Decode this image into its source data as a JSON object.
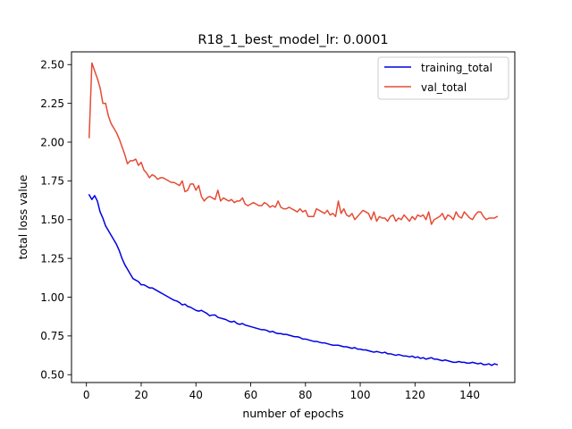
{
  "chart_data": {
    "type": "line",
    "title": "R18_1_best_model_lr: 0.0001",
    "xlabel": "number of epochs",
    "ylabel": "total loss value",
    "xlim": [
      -5.45,
      156.45
    ],
    "ylim": [
      0.4495,
      2.5822
    ],
    "xticks": [
      0,
      20,
      40,
      60,
      80,
      100,
      120,
      140
    ],
    "yticks": [
      0.5,
      0.75,
      1.0,
      1.25,
      1.5,
      1.75,
      2.0,
      2.25,
      2.5
    ],
    "xtick_labels": [
      "0",
      "20",
      "40",
      "60",
      "80",
      "100",
      "120",
      "140"
    ],
    "ytick_labels": [
      "0.50",
      "0.75",
      "1.00",
      "1.25",
      "1.50",
      "1.75",
      "2.00",
      "2.25",
      "2.50"
    ],
    "grid": false,
    "legend_position": "top-right",
    "series": [
      {
        "name": "training_total",
        "color": "#0000e6",
        "x": [
          1,
          2,
          3,
          4,
          5,
          6,
          7,
          8,
          9,
          10,
          11,
          12,
          13,
          14,
          15,
          16,
          17,
          18,
          19,
          20,
          21,
          22,
          23,
          24,
          25,
          26,
          27,
          28,
          29,
          30,
          31,
          32,
          33,
          34,
          35,
          36,
          37,
          38,
          39,
          40,
          41,
          42,
          43,
          44,
          45,
          46,
          47,
          48,
          49,
          50,
          51,
          52,
          53,
          54,
          55,
          56,
          57,
          58,
          59,
          60,
          61,
          62,
          63,
          64,
          65,
          66,
          67,
          68,
          69,
          70,
          71,
          72,
          73,
          74,
          75,
          76,
          77,
          78,
          79,
          80,
          81,
          82,
          83,
          84,
          85,
          86,
          87,
          88,
          89,
          90,
          91,
          92,
          93,
          94,
          95,
          96,
          97,
          98,
          99,
          100,
          101,
          102,
          103,
          104,
          105,
          106,
          107,
          108,
          109,
          110,
          111,
          112,
          113,
          114,
          115,
          116,
          117,
          118,
          119,
          120,
          121,
          122,
          123,
          124,
          125,
          126,
          127,
          128,
          129,
          130,
          131,
          132,
          133,
          134,
          135,
          136,
          137,
          138,
          139,
          140,
          141,
          142,
          143,
          144,
          145,
          146,
          147,
          148,
          149,
          150
        ],
        "y": [
          1.66,
          1.63,
          1.655,
          1.62,
          1.55,
          1.51,
          1.46,
          1.43,
          1.4,
          1.37,
          1.34,
          1.3,
          1.25,
          1.21,
          1.18,
          1.15,
          1.12,
          1.11,
          1.1,
          1.08,
          1.08,
          1.07,
          1.06,
          1.06,
          1.05,
          1.04,
          1.03,
          1.02,
          1.01,
          1.0,
          0.99,
          0.98,
          0.975,
          0.965,
          0.95,
          0.955,
          0.94,
          0.935,
          0.925,
          0.915,
          0.91,
          0.915,
          0.905,
          0.895,
          0.88,
          0.885,
          0.885,
          0.87,
          0.865,
          0.86,
          0.855,
          0.845,
          0.84,
          0.845,
          0.83,
          0.825,
          0.83,
          0.82,
          0.815,
          0.81,
          0.805,
          0.8,
          0.795,
          0.79,
          0.79,
          0.785,
          0.775,
          0.78,
          0.77,
          0.765,
          0.765,
          0.76,
          0.76,
          0.755,
          0.75,
          0.745,
          0.745,
          0.74,
          0.73,
          0.73,
          0.725,
          0.72,
          0.715,
          0.715,
          0.71,
          0.705,
          0.705,
          0.7,
          0.695,
          0.69,
          0.69,
          0.69,
          0.685,
          0.68,
          0.68,
          0.675,
          0.67,
          0.675,
          0.665,
          0.665,
          0.66,
          0.66,
          0.655,
          0.65,
          0.645,
          0.65,
          0.645,
          0.64,
          0.645,
          0.635,
          0.635,
          0.63,
          0.625,
          0.63,
          0.625,
          0.62,
          0.62,
          0.615,
          0.62,
          0.61,
          0.615,
          0.605,
          0.61,
          0.6,
          0.605,
          0.61,
          0.6,
          0.6,
          0.595,
          0.59,
          0.595,
          0.59,
          0.585,
          0.58,
          0.58,
          0.585,
          0.58,
          0.58,
          0.575,
          0.575,
          0.58,
          0.575,
          0.57,
          0.575,
          0.565,
          0.565,
          0.57,
          0.56,
          0.57,
          0.565
        ]
      },
      {
        "name": "val_total",
        "color": "#e64b35",
        "x": [
          1,
          2,
          3,
          4,
          5,
          6,
          7,
          8,
          9,
          10,
          11,
          12,
          13,
          14,
          15,
          16,
          17,
          18,
          19,
          20,
          21,
          22,
          23,
          24,
          25,
          26,
          27,
          28,
          29,
          30,
          31,
          32,
          33,
          34,
          35,
          36,
          37,
          38,
          39,
          40,
          41,
          42,
          43,
          44,
          45,
          46,
          47,
          48,
          49,
          50,
          51,
          52,
          53,
          54,
          55,
          56,
          57,
          58,
          59,
          60,
          61,
          62,
          63,
          64,
          65,
          66,
          67,
          68,
          69,
          70,
          71,
          72,
          73,
          74,
          75,
          76,
          77,
          78,
          79,
          80,
          81,
          82,
          83,
          84,
          85,
          86,
          87,
          88,
          89,
          90,
          91,
          92,
          93,
          94,
          95,
          96,
          97,
          98,
          99,
          100,
          101,
          102,
          103,
          104,
          105,
          106,
          107,
          108,
          109,
          110,
          111,
          112,
          113,
          114,
          115,
          116,
          117,
          118,
          119,
          120,
          121,
          122,
          123,
          124,
          125,
          126,
          127,
          128,
          129,
          130,
          131,
          132,
          133,
          134,
          135,
          136,
          137,
          138,
          139,
          140,
          141,
          142,
          143,
          144,
          145,
          146,
          147,
          148,
          149,
          150
        ],
        "y": [
          2.03,
          2.51,
          2.46,
          2.41,
          2.35,
          2.25,
          2.25,
          2.17,
          2.12,
          2.09,
          2.06,
          2.02,
          1.97,
          1.92,
          1.86,
          1.88,
          1.88,
          1.89,
          1.85,
          1.87,
          1.82,
          1.8,
          1.77,
          1.79,
          1.78,
          1.76,
          1.77,
          1.77,
          1.76,
          1.75,
          1.74,
          1.74,
          1.73,
          1.72,
          1.75,
          1.68,
          1.69,
          1.73,
          1.73,
          1.69,
          1.72,
          1.65,
          1.62,
          1.64,
          1.65,
          1.64,
          1.63,
          1.69,
          1.62,
          1.64,
          1.63,
          1.62,
          1.63,
          1.61,
          1.62,
          1.62,
          1.64,
          1.6,
          1.59,
          1.6,
          1.61,
          1.6,
          1.59,
          1.59,
          1.61,
          1.6,
          1.58,
          1.59,
          1.58,
          1.62,
          1.58,
          1.57,
          1.57,
          1.58,
          1.57,
          1.56,
          1.55,
          1.57,
          1.55,
          1.56,
          1.52,
          1.52,
          1.52,
          1.57,
          1.56,
          1.55,
          1.54,
          1.56,
          1.53,
          1.54,
          1.52,
          1.62,
          1.54,
          1.57,
          1.53,
          1.52,
          1.54,
          1.5,
          1.52,
          1.54,
          1.56,
          1.55,
          1.54,
          1.5,
          1.55,
          1.49,
          1.52,
          1.51,
          1.51,
          1.49,
          1.52,
          1.53,
          1.49,
          1.51,
          1.5,
          1.53,
          1.51,
          1.49,
          1.52,
          1.5,
          1.53,
          1.52,
          1.53,
          1.5,
          1.55,
          1.47,
          1.5,
          1.51,
          1.52,
          1.54,
          1.5,
          1.53,
          1.52,
          1.5,
          1.55,
          1.52,
          1.51,
          1.55,
          1.53,
          1.51,
          1.5,
          1.53,
          1.55,
          1.55,
          1.52,
          1.5,
          1.51,
          1.51,
          1.51,
          1.52
        ]
      }
    ]
  }
}
